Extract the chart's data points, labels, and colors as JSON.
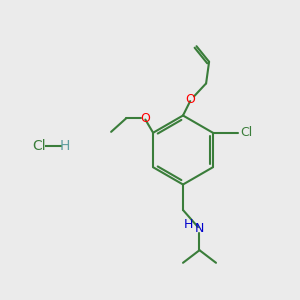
{
  "bg_color": "#ebebeb",
  "bond_color": "#3a7d3a",
  "O_color": "#ff0000",
  "N_color": "#0000cc",
  "Cl_color": "#3a7d3a",
  "lw": 1.5,
  "figsize": [
    3.0,
    3.0
  ],
  "dpi": 100,
  "xlim": [
    0,
    10
  ],
  "ylim": [
    0,
    10
  ]
}
